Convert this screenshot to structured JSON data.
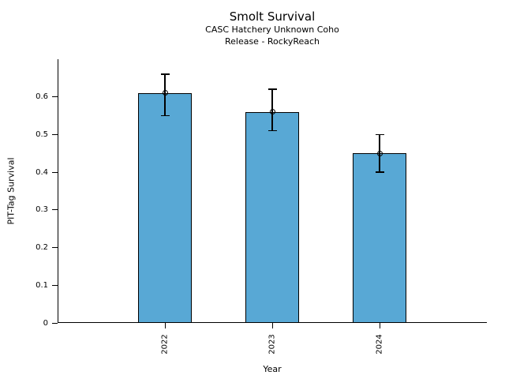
{
  "figure": {
    "title": "Smolt Survival",
    "subtitle_line1": "CASC Hatchery Unknown Coho",
    "subtitle_line2": "Release - RockyReach"
  },
  "chart_data": {
    "type": "bar",
    "title": "Smolt Survival",
    "subtitle": [
      "CASC Hatchery Unknown Coho",
      "Release - RockyReach"
    ],
    "categories": [
      "2022",
      "2023",
      "2024"
    ],
    "values": [
      0.61,
      0.56,
      0.45
    ],
    "error_low": [
      0.55,
      0.51,
      0.4
    ],
    "error_high": [
      0.66,
      0.62,
      0.5
    ],
    "xlabel": "Year",
    "ylabel": "PIT-Tag Survival",
    "ylim": [
      0,
      0.7
    ],
    "yticks": [
      "0",
      "0.1",
      "0.2",
      "0.3",
      "0.4",
      "0.5",
      "0.6"
    ],
    "x_tick_rotation_deg": -90,
    "grid": false,
    "legend": false,
    "bar_color": "#58A8D5",
    "bar_edge_color": "#000000",
    "error_bar_color": "#000000",
    "marker_style": "open-circle"
  }
}
